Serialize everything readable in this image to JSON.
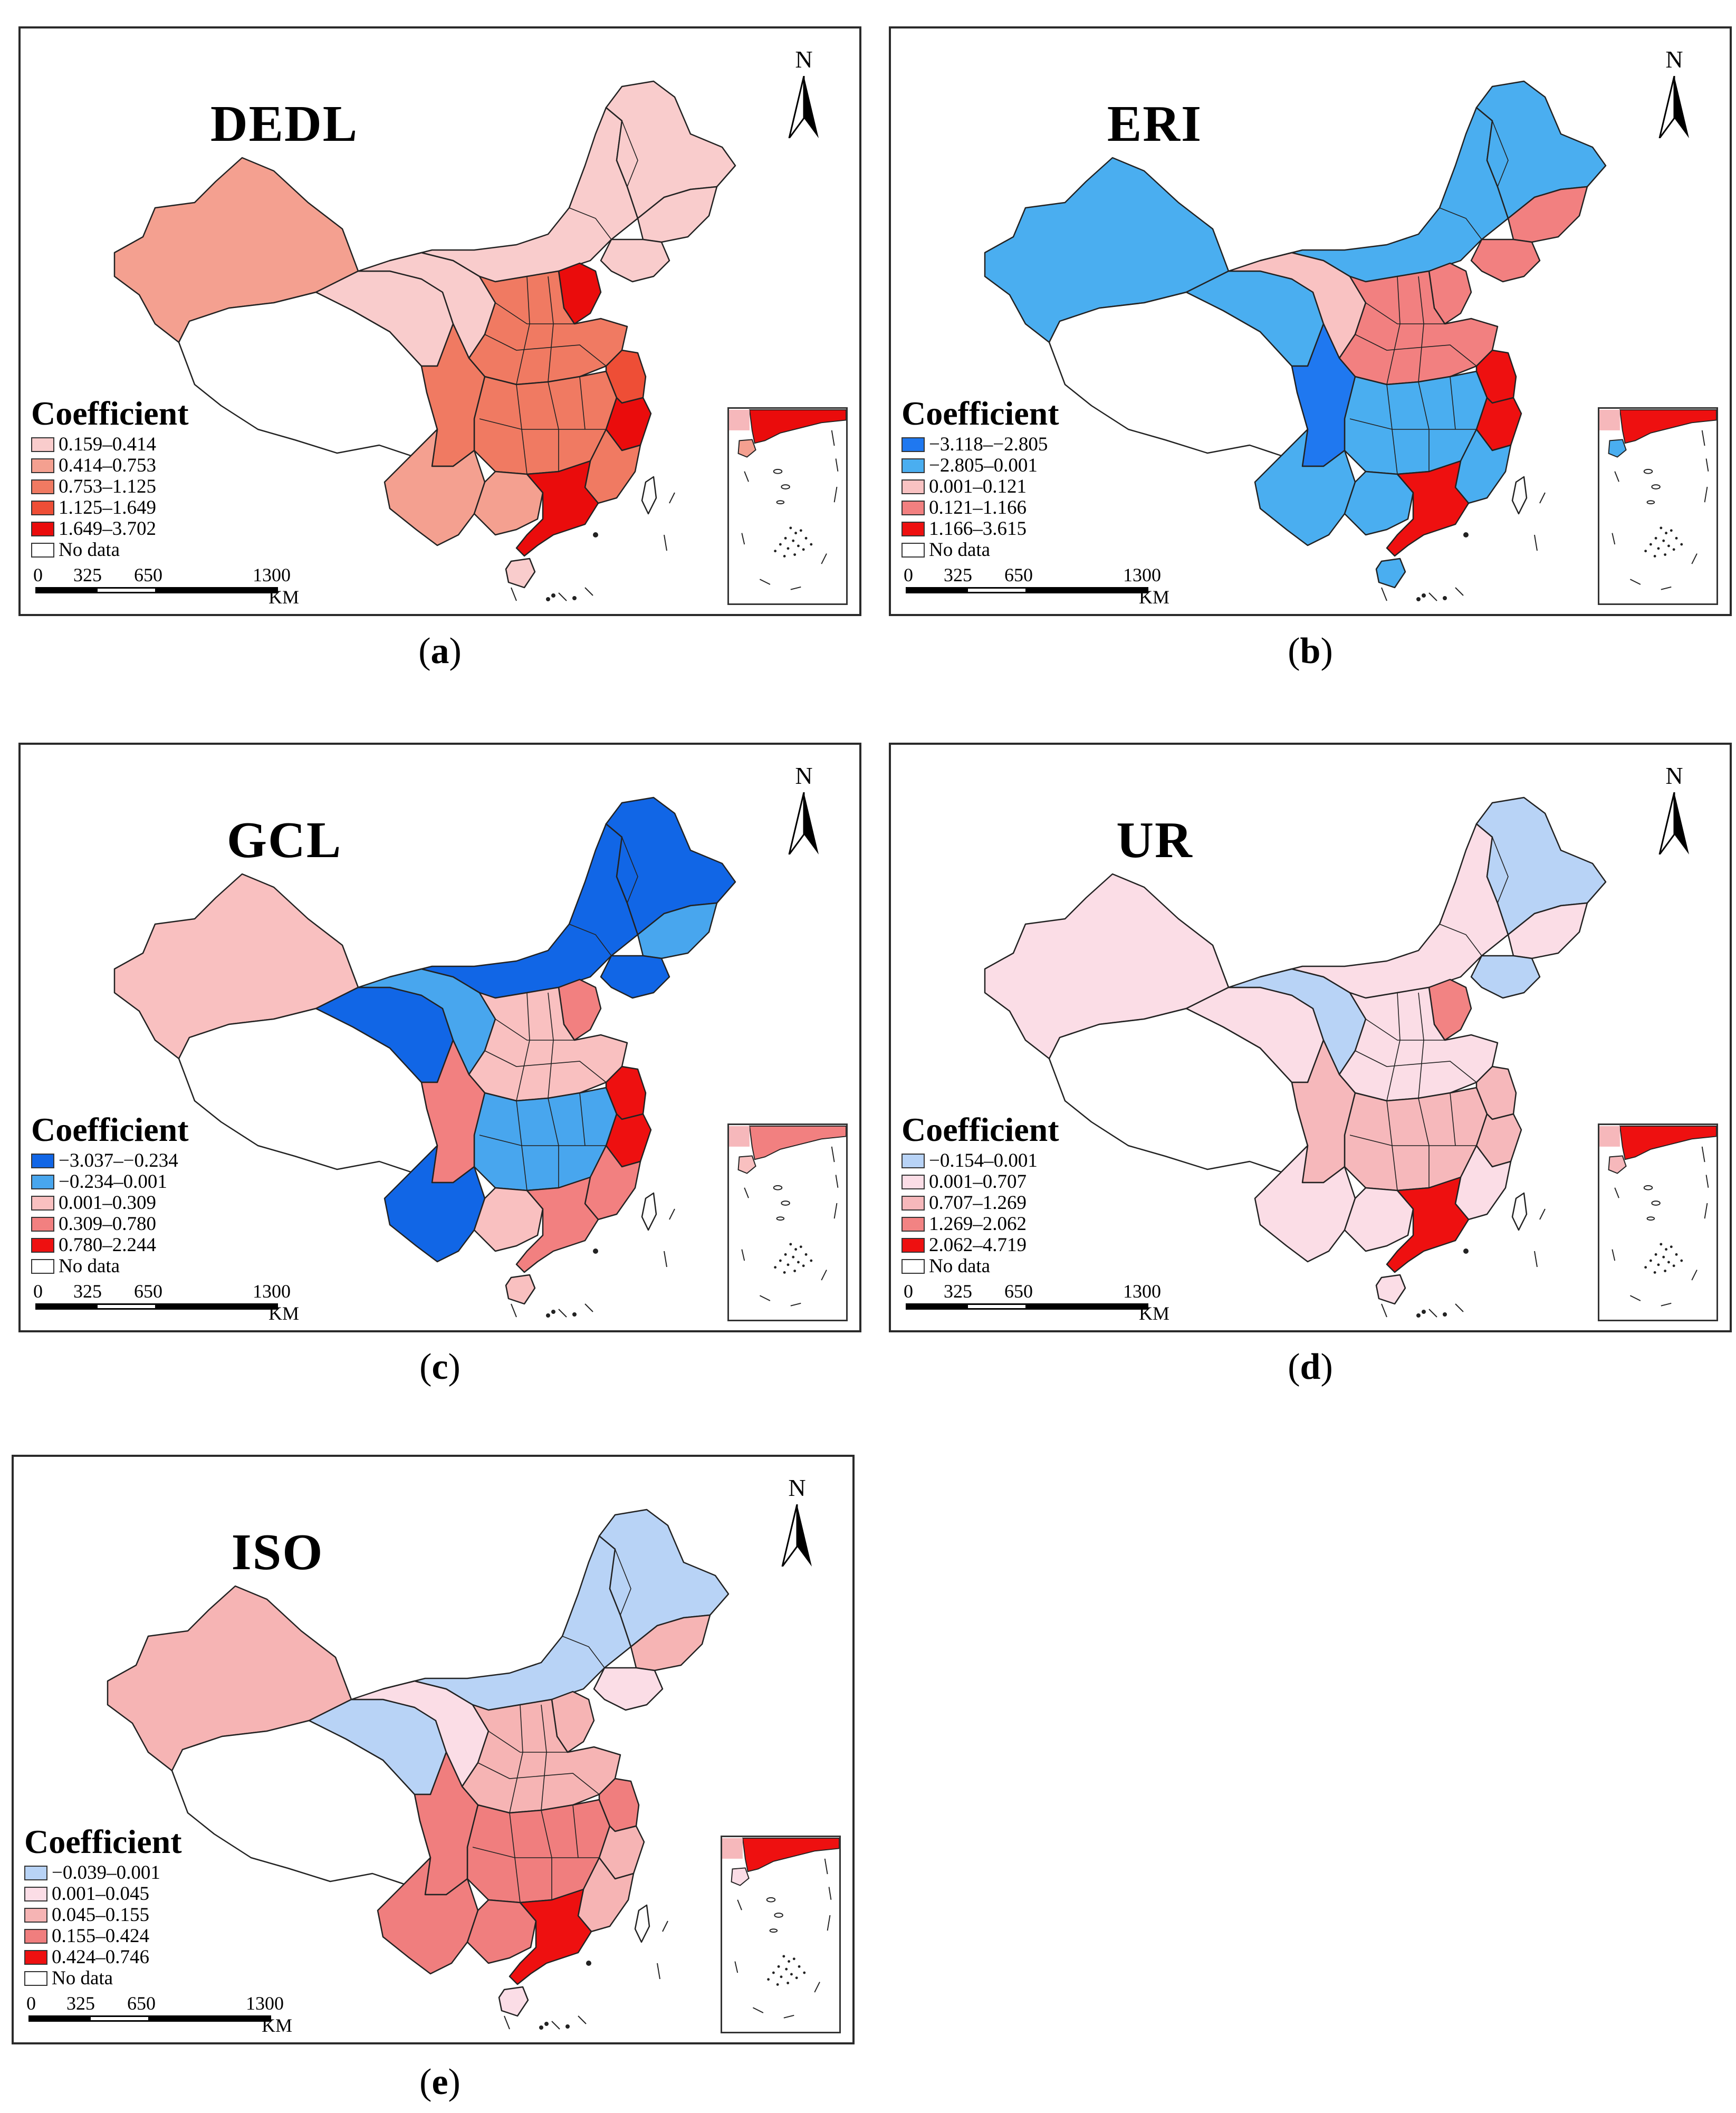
{
  "figure": {
    "compass_label": "N",
    "legend_title": "Coefficient",
    "scale": {
      "ticks": [
        "0",
        "325",
        "650",
        "1300"
      ],
      "unit": "KM"
    },
    "no_data_color": "#ffffff"
  },
  "panels": [
    {
      "id": "a",
      "title": "DEDL",
      "caption_open": "(",
      "caption_letter": "a",
      "caption_close": ")",
      "legend": [
        {
          "label": "0.159–0.414",
          "color": "#f9cccc"
        },
        {
          "label": "0.414–0.753",
          "color": "#f4a090"
        },
        {
          "label": "0.753–1.125",
          "color": "#f07a62"
        },
        {
          "label": "1.125–1.649",
          "color": "#ee4e36"
        },
        {
          "label": "1.649–3.702",
          "color": "#ea0c0c"
        },
        {
          "label": "No data",
          "color": "#ffffff"
        }
      ],
      "region_classes": {
        "xinjiang": 1,
        "tibet": 5,
        "qinghai": 0,
        "gansu": 0,
        "inner_mongolia": 0,
        "heilongjiang": 0,
        "jilin": 0,
        "liaoning": 0,
        "beijing": 4,
        "north_plain": 2,
        "central": 2,
        "jiangsu": 3,
        "zhejiang": 4,
        "sichuan": 2,
        "yunnan": 1,
        "guangxi": 1,
        "guangdong": 4,
        "fujian": 2,
        "hainan": 0,
        "taiwan": 5,
        "inset_guangdong": 4,
        "inset_hainan": 1
      }
    },
    {
      "id": "b",
      "title": "ERI",
      "caption_open": "(",
      "caption_letter": "b",
      "caption_close": ")",
      "legend": [
        {
          "label": "−3.118–−2.805",
          "color": "#1f78f0"
        },
        {
          "label": "−2.805–0.001",
          "color": "#4aaef0"
        },
        {
          "label": "0.001–0.121",
          "color": "#f9c2c2"
        },
        {
          "label": "0.121–1.166",
          "color": "#f28080"
        },
        {
          "label": "1.166–3.615",
          "color": "#ee1010"
        },
        {
          "label": "No data",
          "color": "#ffffff"
        }
      ],
      "region_classes": {
        "xinjiang": 1,
        "tibet": 5,
        "qinghai": 1,
        "gansu": 2,
        "inner_mongolia": 1,
        "heilongjiang": 1,
        "jilin": 3,
        "liaoning": 3,
        "beijing": 3,
        "north_plain": 3,
        "central": 1,
        "jiangsu": 4,
        "zhejiang": 4,
        "sichuan": 0,
        "yunnan": 1,
        "guangxi": 1,
        "guangdong": 4,
        "fujian": 1,
        "hainan": 1,
        "taiwan": 5,
        "inset_guangdong": 4,
        "inset_hainan": 1
      }
    },
    {
      "id": "c",
      "title": "GCL",
      "caption_open": "(",
      "caption_letter": "c",
      "caption_close": ")",
      "legend": [
        {
          "label": "−3.037–−0.234",
          "color": "#1166e6"
        },
        {
          "label": "−0.234–0.001",
          "color": "#48a6ee"
        },
        {
          "label": "0.001–0.309",
          "color": "#f9c0c0"
        },
        {
          "label": "0.309–0.780",
          "color": "#f28080"
        },
        {
          "label": "0.780–2.244",
          "color": "#ee1010"
        },
        {
          "label": "No data",
          "color": "#ffffff"
        }
      ],
      "region_classes": {
        "xinjiang": 2,
        "tibet": 5,
        "qinghai": 0,
        "gansu": 1,
        "inner_mongolia": 0,
        "heilongjiang": 0,
        "jilin": 1,
        "liaoning": 0,
        "beijing": 3,
        "north_plain": 2,
        "central": 1,
        "jiangsu": 4,
        "zhejiang": 4,
        "sichuan": 3,
        "yunnan": 0,
        "guangxi": 2,
        "guangdong": 3,
        "fujian": 3,
        "hainan": 2,
        "taiwan": 5,
        "inset_guangdong": 3,
        "inset_hainan": 2
      }
    },
    {
      "id": "d",
      "title": "UR",
      "caption_open": "(",
      "caption_letter": "d",
      "caption_close": ")",
      "legend": [
        {
          "label": "−0.154–0.001",
          "color": "#b8d3f6"
        },
        {
          "label": "0.001–0.707",
          "color": "#fbdde6"
        },
        {
          "label": "0.707–1.269",
          "color": "#f6b8bb"
        },
        {
          "label": "1.269–2.062",
          "color": "#f28383"
        },
        {
          "label": "2.062–4.719",
          "color": "#ee1010"
        },
        {
          "label": "No data",
          "color": "#ffffff"
        }
      ],
      "region_classes": {
        "xinjiang": 1,
        "tibet": 5,
        "qinghai": 1,
        "gansu": 0,
        "inner_mongolia": 1,
        "heilongjiang": 0,
        "jilin": 1,
        "liaoning": 0,
        "beijing": 3,
        "north_plain": 1,
        "central": 2,
        "jiangsu": 2,
        "zhejiang": 2,
        "sichuan": 2,
        "yunnan": 1,
        "guangxi": 1,
        "guangdong": 4,
        "fujian": 1,
        "hainan": 1,
        "taiwan": 5,
        "inset_guangdong": 4,
        "inset_hainan": 2
      }
    },
    {
      "id": "e",
      "title": "ISO",
      "caption_open": "(",
      "caption_letter": "e",
      "caption_close": ")",
      "legend": [
        {
          "label": "−0.039–0.001",
          "color": "#b8d3f6"
        },
        {
          "label": "0.001–0.045",
          "color": "#fbdde6"
        },
        {
          "label": "0.045–0.155",
          "color": "#f6b4b4"
        },
        {
          "label": "0.155–0.424",
          "color": "#f07e7e"
        },
        {
          "label": "0.424–0.746",
          "color": "#ee1010"
        },
        {
          "label": "No data",
          "color": "#ffffff"
        }
      ],
      "region_classes": {
        "xinjiang": 2,
        "tibet": 5,
        "qinghai": 0,
        "gansu": 1,
        "inner_mongolia": 0,
        "heilongjiang": 0,
        "jilin": 2,
        "liaoning": 1,
        "beijing": 2,
        "north_plain": 2,
        "central": 3,
        "jiangsu": 3,
        "zhejiang": 2,
        "sichuan": 3,
        "yunnan": 3,
        "guangxi": 3,
        "guangdong": 4,
        "fujian": 2,
        "hainan": 1,
        "taiwan": 5,
        "inset_guangdong": 4,
        "inset_hainan": 1
      }
    }
  ]
}
